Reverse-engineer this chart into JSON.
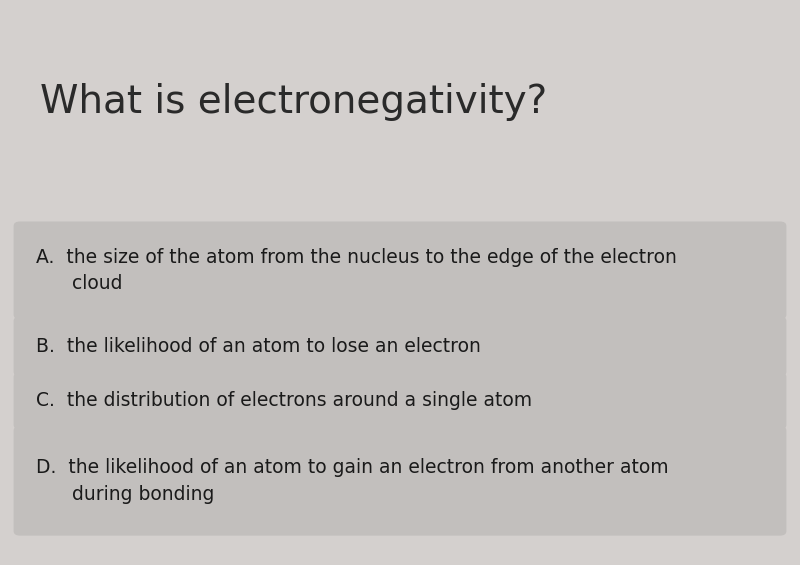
{
  "title": "What is electronegativity?",
  "title_fontsize": 28,
  "title_color": "#2a2a2a",
  "background_color": "#d4d0ce",
  "option_bg_color": "#c2bfbd",
  "options": [
    "A.  the size of the atom from the nucleus to the edge of the electron\n      cloud",
    "B.  the likelihood of an atom to lose an electron",
    "C.  the distribution of electrons around a single atom",
    "D.  the likelihood of an atom to gain an electron from another atom\n      during bonding"
  ],
  "option_fontsize": 13.5,
  "option_text_color": "#1a1a1a",
  "fig_width": 8.0,
  "fig_height": 5.65,
  "dpi": 100
}
